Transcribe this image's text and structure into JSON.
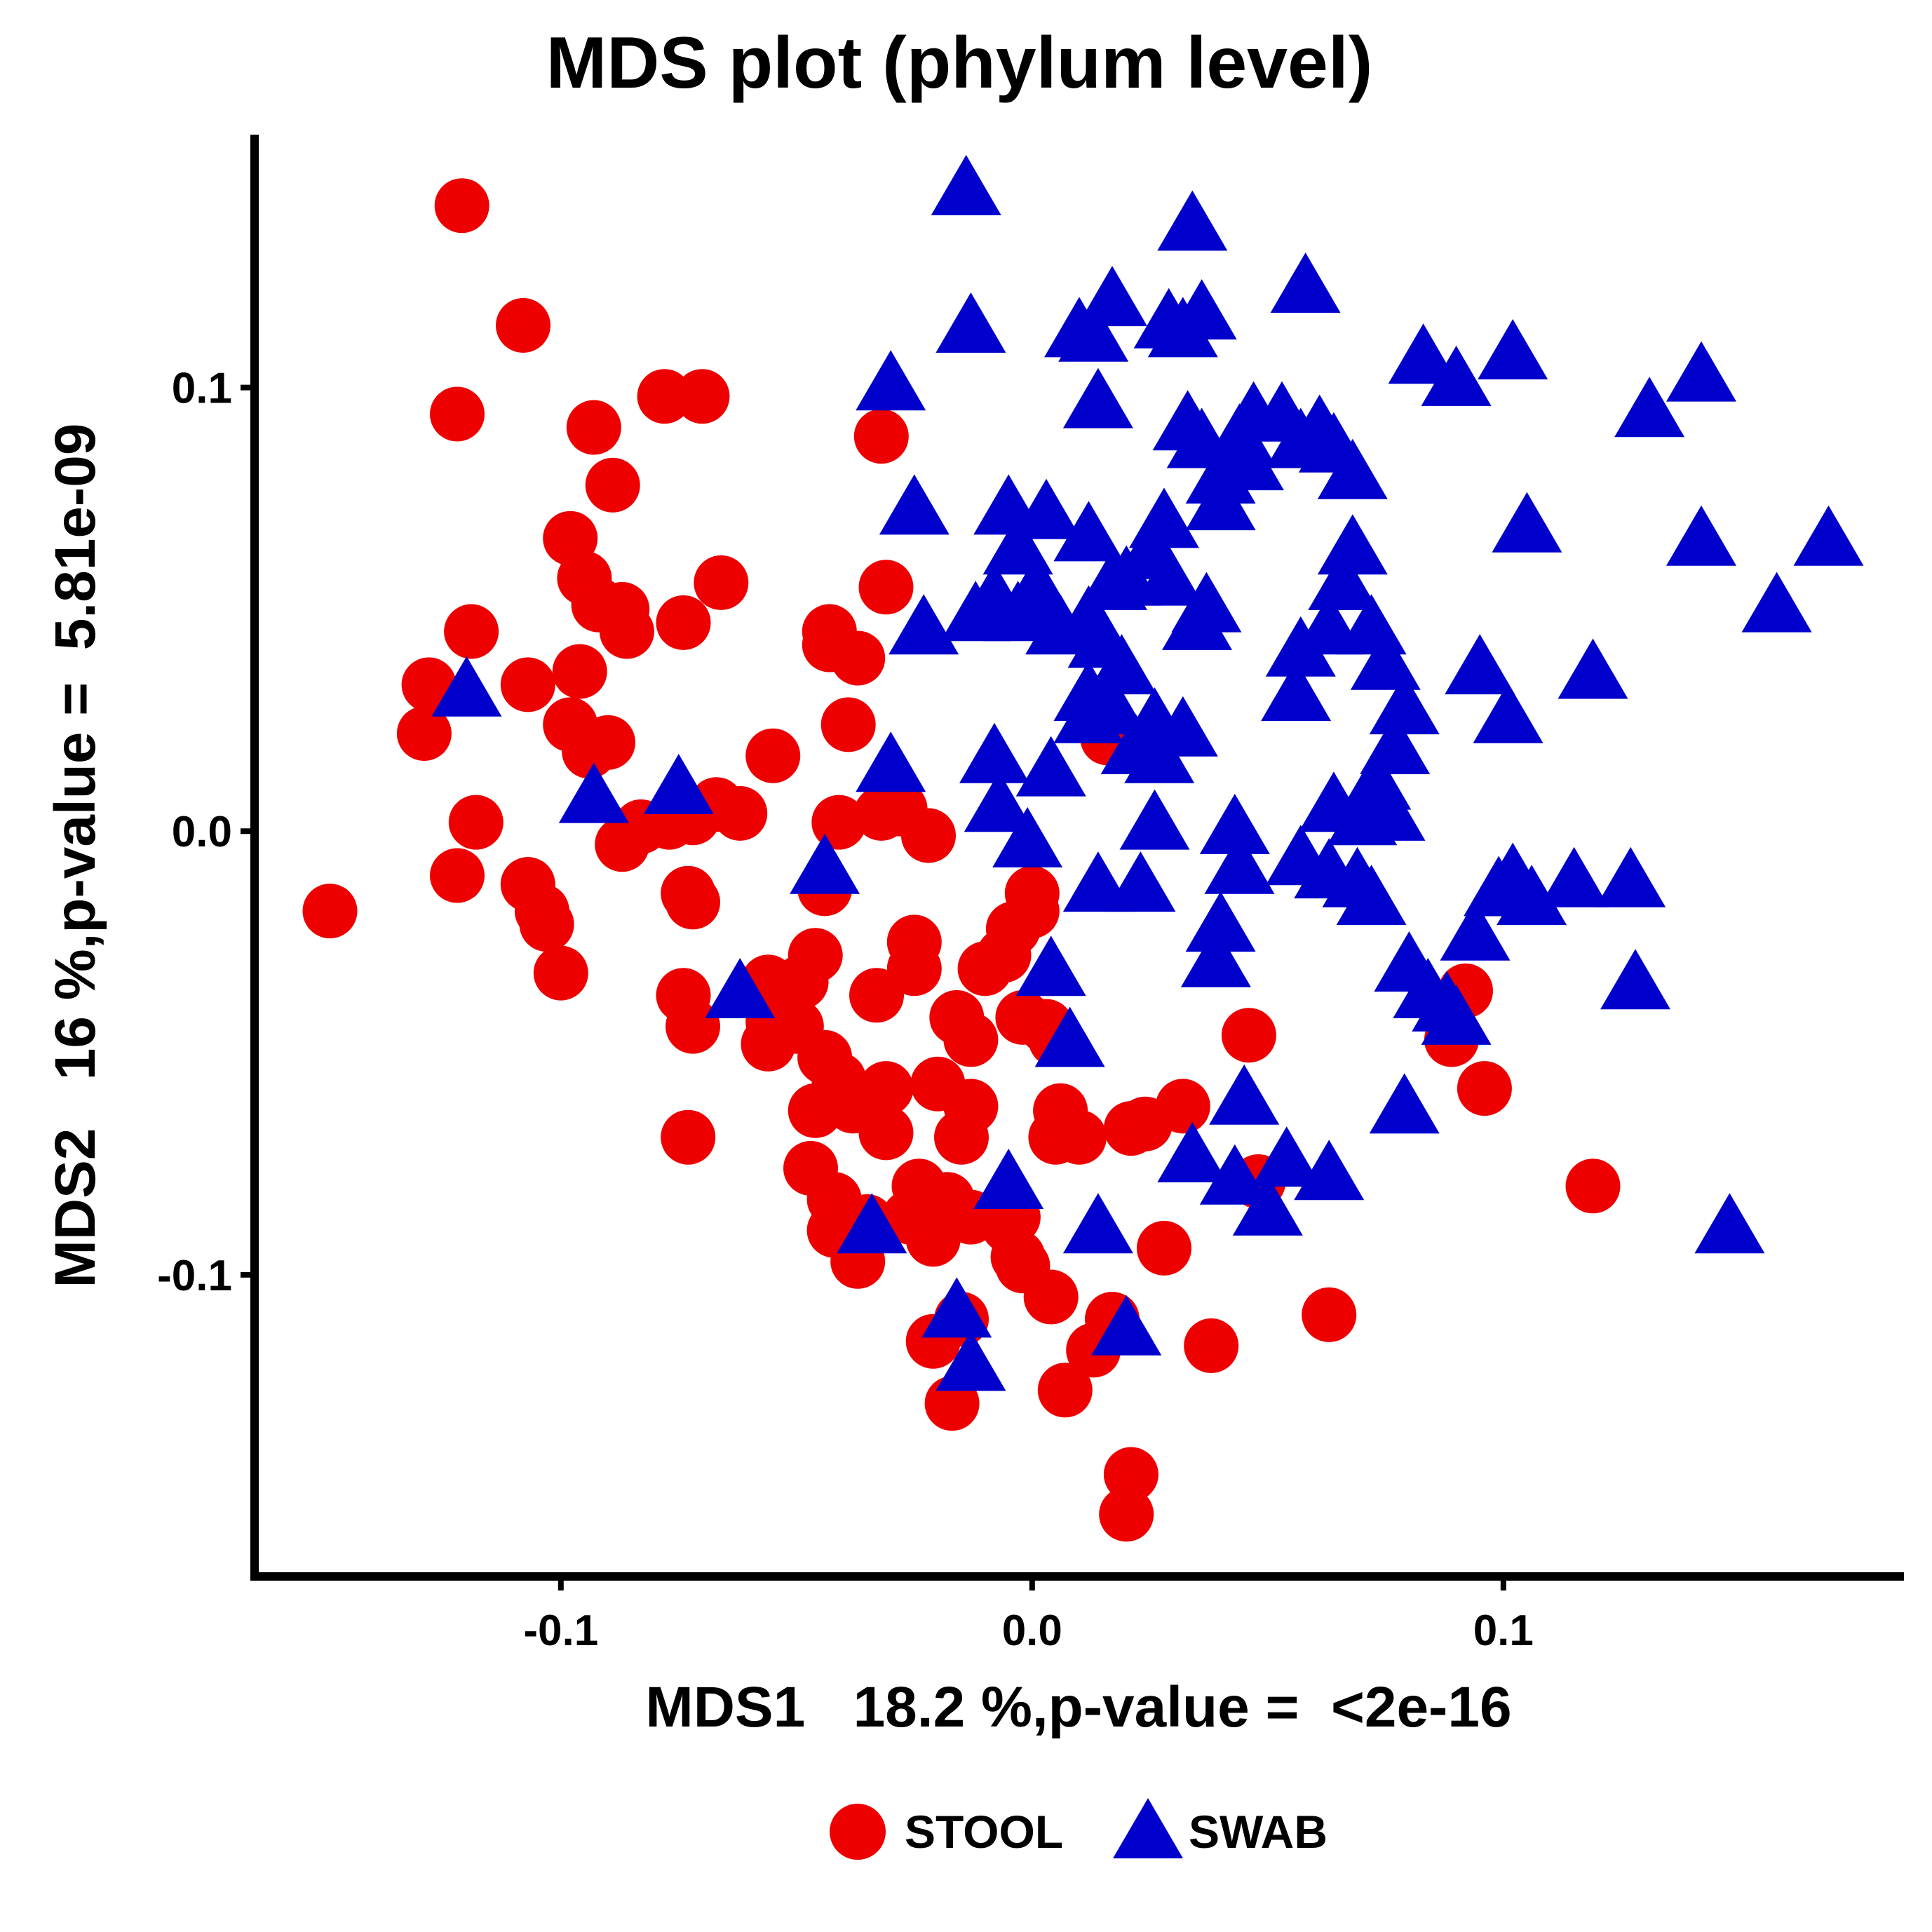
{
  "chart_data": {
    "type": "scatter",
    "title": "MDS plot (phylum level)",
    "xlabel": "MDS1   18.2 %,p-value =  <2e-16",
    "ylabel": "MDS2   16 %,p-value =  5.81e-09",
    "xlim": [
      -0.165,
      0.185
    ],
    "ylim": [
      -0.168,
      0.157
    ],
    "xticks": [
      -0.1,
      0.0,
      0.1
    ],
    "xtick_labels": [
      "-0.1",
      "0.0",
      "0.1"
    ],
    "yticks": [
      -0.1,
      0.0,
      0.1
    ],
    "ytick_labels": [
      "-0.1",
      "0.0",
      "0.1"
    ],
    "grid": false,
    "legend_position": "bottom",
    "series": [
      {
        "name": "STOOL",
        "marker": "circle",
        "color": "#EE0000",
        "points": [
          [
            -0.121,
            0.141
          ],
          [
            -0.108,
            0.114
          ],
          [
            -0.122,
            0.094
          ],
          [
            -0.093,
            0.091
          ],
          [
            -0.089,
            0.078
          ],
          [
            -0.078,
            0.098
          ],
          [
            -0.07,
            0.098
          ],
          [
            -0.098,
            0.066
          ],
          [
            -0.095,
            0.057
          ],
          [
            -0.092,
            0.051
          ],
          [
            -0.087,
            0.05
          ],
          [
            -0.086,
            0.045
          ],
          [
            -0.119,
            0.045
          ],
          [
            -0.074,
            0.047
          ],
          [
            -0.066,
            0.056
          ],
          [
            -0.128,
            0.033
          ],
          [
            -0.129,
            0.022
          ],
          [
            -0.107,
            0.033
          ],
          [
            -0.096,
            0.036
          ],
          [
            -0.098,
            0.024
          ],
          [
            -0.09,
            0.02
          ],
          [
            -0.094,
            0.018
          ],
          [
            -0.118,
            0.002
          ],
          [
            -0.122,
            -0.01
          ],
          [
            -0.149,
            -0.018
          ],
          [
            -0.107,
            -0.012
          ],
          [
            -0.104,
            -0.018
          ],
          [
            -0.103,
            -0.021
          ],
          [
            -0.1,
            -0.032
          ],
          [
            -0.087,
            -0.003
          ],
          [
            -0.083,
            0.001
          ],
          [
            -0.077,
            0.002
          ],
          [
            -0.072,
            0.003
          ],
          [
            -0.067,
            0.006
          ],
          [
            -0.062,
            0.004
          ],
          [
            -0.073,
            -0.014
          ],
          [
            -0.072,
            -0.016
          ],
          [
            -0.074,
            -0.037
          ],
          [
            -0.072,
            -0.044
          ],
          [
            -0.073,
            -0.069
          ],
          [
            -0.055,
            0.017
          ],
          [
            -0.056,
            -0.034
          ],
          [
            -0.055,
            -0.043
          ],
          [
            -0.056,
            -0.048
          ],
          [
            -0.05,
            -0.044
          ],
          [
            -0.046,
            -0.028
          ],
          [
            -0.049,
            -0.034
          ],
          [
            -0.044,
            -0.013
          ],
          [
            -0.044,
            -0.051
          ],
          [
            -0.041,
            -0.056
          ],
          [
            -0.046,
            -0.063
          ],
          [
            -0.038,
            -0.062
          ],
          [
            -0.031,
            -0.058
          ],
          [
            -0.031,
            -0.068
          ],
          [
            -0.047,
            -0.076
          ],
          [
            -0.042,
            -0.083
          ],
          [
            -0.042,
            -0.09
          ],
          [
            -0.035,
            -0.088
          ],
          [
            -0.037,
            -0.097
          ],
          [
            -0.041,
            0.002
          ],
          [
            -0.043,
            0.045
          ],
          [
            -0.043,
            0.042
          ],
          [
            -0.037,
            0.039
          ],
          [
            -0.039,
            0.024
          ],
          [
            -0.031,
            0.055
          ],
          [
            -0.032,
            0.089
          ],
          [
            -0.032,
            0.004
          ],
          [
            -0.028,
            0.005
          ],
          [
            -0.022,
            -0.001
          ],
          [
            -0.025,
            -0.025
          ],
          [
            -0.025,
            -0.031
          ],
          [
            -0.033,
            -0.037
          ],
          [
            -0.016,
            -0.042
          ],
          [
            -0.013,
            -0.047
          ],
          [
            -0.02,
            -0.057
          ],
          [
            -0.013,
            -0.062
          ],
          [
            -0.015,
            -0.069
          ],
          [
            -0.024,
            -0.08
          ],
          [
            -0.018,
            -0.083
          ],
          [
            -0.026,
            -0.087
          ],
          [
            -0.013,
            -0.087
          ],
          [
            -0.021,
            -0.092
          ],
          [
            -0.021,
            -0.115
          ],
          [
            -0.015,
            -0.11
          ],
          [
            -0.017,
            -0.129
          ],
          [
            -0.01,
            -0.031
          ],
          [
            -0.006,
            -0.028
          ],
          [
            -0.004,
            -0.022
          ],
          [
            0.0,
            -0.014
          ],
          [
            0.0,
            -0.018
          ],
          [
            -0.002,
            -0.042
          ],
          [
            0.003,
            -0.044
          ],
          [
            0.005,
            -0.047
          ],
          [
            -0.004,
            -0.087
          ],
          [
            -0.005,
            -0.089
          ],
          [
            -0.003,
            -0.096
          ],
          [
            -0.002,
            -0.098
          ],
          [
            0.004,
            -0.105
          ],
          [
            0.006,
            -0.063
          ],
          [
            0.005,
            -0.069
          ],
          [
            0.01,
            -0.069
          ],
          [
            0.007,
            -0.126
          ],
          [
            0.013,
            -0.117
          ],
          [
            0.017,
            -0.11
          ],
          [
            0.021,
            -0.067
          ],
          [
            0.024,
            -0.066
          ],
          [
            0.032,
            -0.062
          ],
          [
            0.028,
            -0.094
          ],
          [
            0.038,
            -0.116
          ],
          [
            0.016,
            0.021
          ],
          [
            0.021,
            -0.145
          ],
          [
            0.02,
            -0.154
          ],
          [
            0.046,
            -0.046
          ],
          [
            0.048,
            -0.079
          ],
          [
            0.063,
            -0.109
          ],
          [
            0.089,
            -0.047
          ],
          [
            0.092,
            -0.036
          ],
          [
            0.096,
            -0.058
          ],
          [
            0.119,
            -0.08
          ]
        ]
      },
      {
        "name": "SWAB",
        "marker": "triangle",
        "color": "#0000CC",
        "points": [
          [
            -0.014,
            0.144
          ],
          [
            0.034,
            0.136
          ],
          [
            0.058,
            0.122
          ],
          [
            0.017,
            0.119
          ],
          [
            0.029,
            0.114
          ],
          [
            0.036,
            0.116
          ],
          [
            -0.013,
            0.113
          ],
          [
            0.01,
            0.112
          ],
          [
            0.013,
            0.111
          ],
          [
            0.032,
            0.112
          ],
          [
            -0.03,
            0.1
          ],
          [
            0.014,
            0.096
          ],
          [
            0.033,
            0.091
          ],
          [
            0.036,
            0.087
          ],
          [
            0.047,
            0.093
          ],
          [
            0.053,
            0.093
          ],
          [
            0.061,
            0.09
          ],
          [
            0.044,
            0.088
          ],
          [
            0.057,
            0.087
          ],
          [
            0.046,
            0.082
          ],
          [
            0.04,
            0.079
          ],
          [
            0.064,
            0.086
          ],
          [
            0.068,
            0.08
          ],
          [
            0.083,
            0.106
          ],
          [
            0.09,
            0.101
          ],
          [
            0.102,
            0.107
          ],
          [
            0.131,
            0.094
          ],
          [
            0.142,
            0.102
          ],
          [
            0.142,
            0.065
          ],
          [
            0.169,
            0.065
          ],
          [
            0.158,
            0.05
          ],
          [
            0.105,
            0.068
          ],
          [
            0.119,
            0.035
          ],
          [
            0.095,
            0.036
          ],
          [
            0.101,
            0.025
          ],
          [
            0.068,
            0.063
          ],
          [
            0.066,
            0.055
          ],
          [
            0.072,
            0.045
          ],
          [
            0.075,
            0.037
          ],
          [
            0.079,
            0.027
          ],
          [
            0.077,
            0.018
          ],
          [
            0.073,
            0.01
          ],
          [
            0.076,
            0.003
          ],
          [
            0.064,
            0.005
          ],
          [
            0.07,
            0.002
          ],
          [
            0.063,
            0.045
          ],
          [
            0.057,
            0.04
          ],
          [
            0.056,
            0.03
          ],
          [
            0.04,
            0.073
          ],
          [
            0.028,
            0.069
          ],
          [
            0.025,
            0.062
          ],
          [
            0.029,
            0.056
          ],
          [
            0.037,
            0.05
          ],
          [
            0.035,
            0.046
          ],
          [
            0.02,
            0.056
          ],
          [
            0.017,
            0.055
          ],
          [
            0.012,
            0.066
          ],
          [
            0.003,
            0.071
          ],
          [
            -0.003,
            0.063
          ],
          [
            -0.008,
            0.052
          ],
          [
            -0.012,
            0.048
          ],
          [
            -0.003,
            0.048
          ],
          [
            0.001,
            0.054
          ],
          [
            0.002,
            0.05
          ],
          [
            0.006,
            0.045
          ],
          [
            0.012,
            0.047
          ],
          [
            0.015,
            0.042
          ],
          [
            0.019,
            0.036
          ],
          [
            0.012,
            0.03
          ],
          [
            0.017,
            0.027
          ],
          [
            0.026,
            0.024
          ],
          [
            0.032,
            0.022
          ],
          [
            0.022,
            0.018
          ],
          [
            0.027,
            0.016
          ],
          [
            0.012,
            0.025
          ],
          [
            -0.005,
            0.072
          ],
          [
            -0.025,
            0.072
          ],
          [
            -0.023,
            0.045
          ],
          [
            -0.03,
            0.014
          ],
          [
            -0.008,
            0.016
          ],
          [
            -0.007,
            0.005
          ],
          [
            0.004,
            0.013
          ],
          [
            -0.001,
            -0.003
          ],
          [
            0.026,
            0.001
          ],
          [
            0.043,
            0.0
          ],
          [
            0.044,
            -0.009
          ],
          [
            0.04,
            -0.022
          ],
          [
            0.039,
            -0.03
          ],
          [
            0.057,
            -0.007
          ],
          [
            0.063,
            -0.01
          ],
          [
            0.069,
            -0.012
          ],
          [
            0.072,
            -0.016
          ],
          [
            0.08,
            -0.031
          ],
          [
            0.084,
            -0.037
          ],
          [
            0.088,
            -0.04
          ],
          [
            0.09,
            -0.043
          ],
          [
            0.094,
            -0.024
          ],
          [
            0.099,
            -0.014
          ],
          [
            0.102,
            -0.011
          ],
          [
            0.106,
            -0.016
          ],
          [
            0.115,
            -0.012
          ],
          [
            0.127,
            -0.012
          ],
          [
            0.128,
            -0.035
          ],
          [
            0.014,
            -0.013
          ],
          [
            0.023,
            -0.013
          ],
          [
            0.004,
            -0.032
          ],
          [
            0.008,
            -0.048
          ],
          [
            0.045,
            -0.061
          ],
          [
            0.079,
            -0.063
          ],
          [
            0.034,
            -0.074
          ],
          [
            0.043,
            -0.079
          ],
          [
            0.05,
            -0.086
          ],
          [
            0.054,
            -0.075
          ],
          [
            0.063,
            -0.078
          ],
          [
            0.148,
            -0.09
          ],
          [
            -0.12,
            0.031
          ],
          [
            -0.093,
            0.007
          ],
          [
            -0.075,
            0.009
          ],
          [
            -0.062,
            -0.037
          ],
          [
            -0.044,
            -0.009
          ],
          [
            -0.034,
            -0.09
          ],
          [
            -0.005,
            -0.08
          ],
          [
            0.014,
            -0.09
          ],
          [
            -0.016,
            -0.109
          ],
          [
            0.02,
            -0.113
          ],
          [
            -0.013,
            -0.121
          ]
        ]
      }
    ]
  }
}
